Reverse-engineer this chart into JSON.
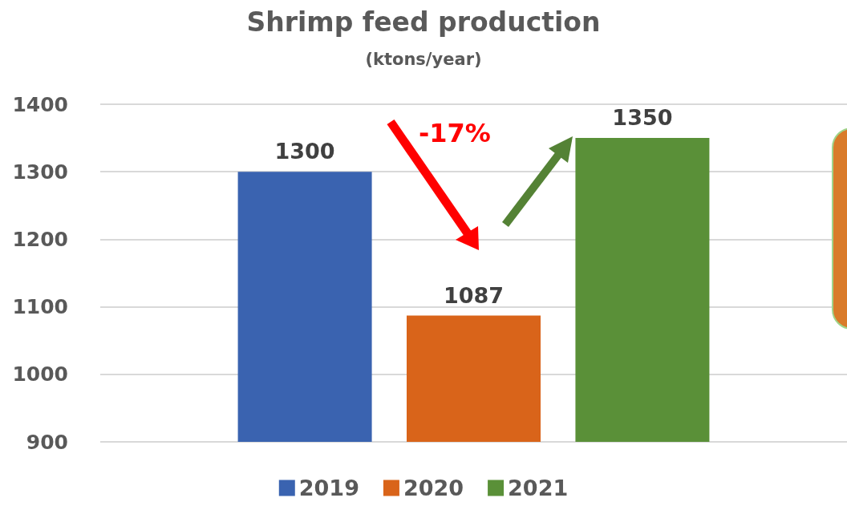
{
  "chart_data": {
    "type": "bar",
    "title": "Shrimp feed production",
    "subtitle": "(ktons/year)",
    "categories": [
      null
    ],
    "series": [
      {
        "name": "2019",
        "color": "#3a63b0",
        "values": [
          1300
        ]
      },
      {
        "name": "2020",
        "color": "#d9641a",
        "values": [
          1087
        ]
      },
      {
        "name": "2021",
        "color": "#5a9038",
        "values": [
          1350
        ]
      }
    ],
    "ylim": [
      900,
      1400
    ],
    "yticks": [
      900,
      1000,
      1100,
      1200,
      1300,
      1400
    ],
    "grid": "y",
    "legend": "bottom",
    "data_labels": true,
    "annotations": [
      "-17%"
    ]
  }
}
